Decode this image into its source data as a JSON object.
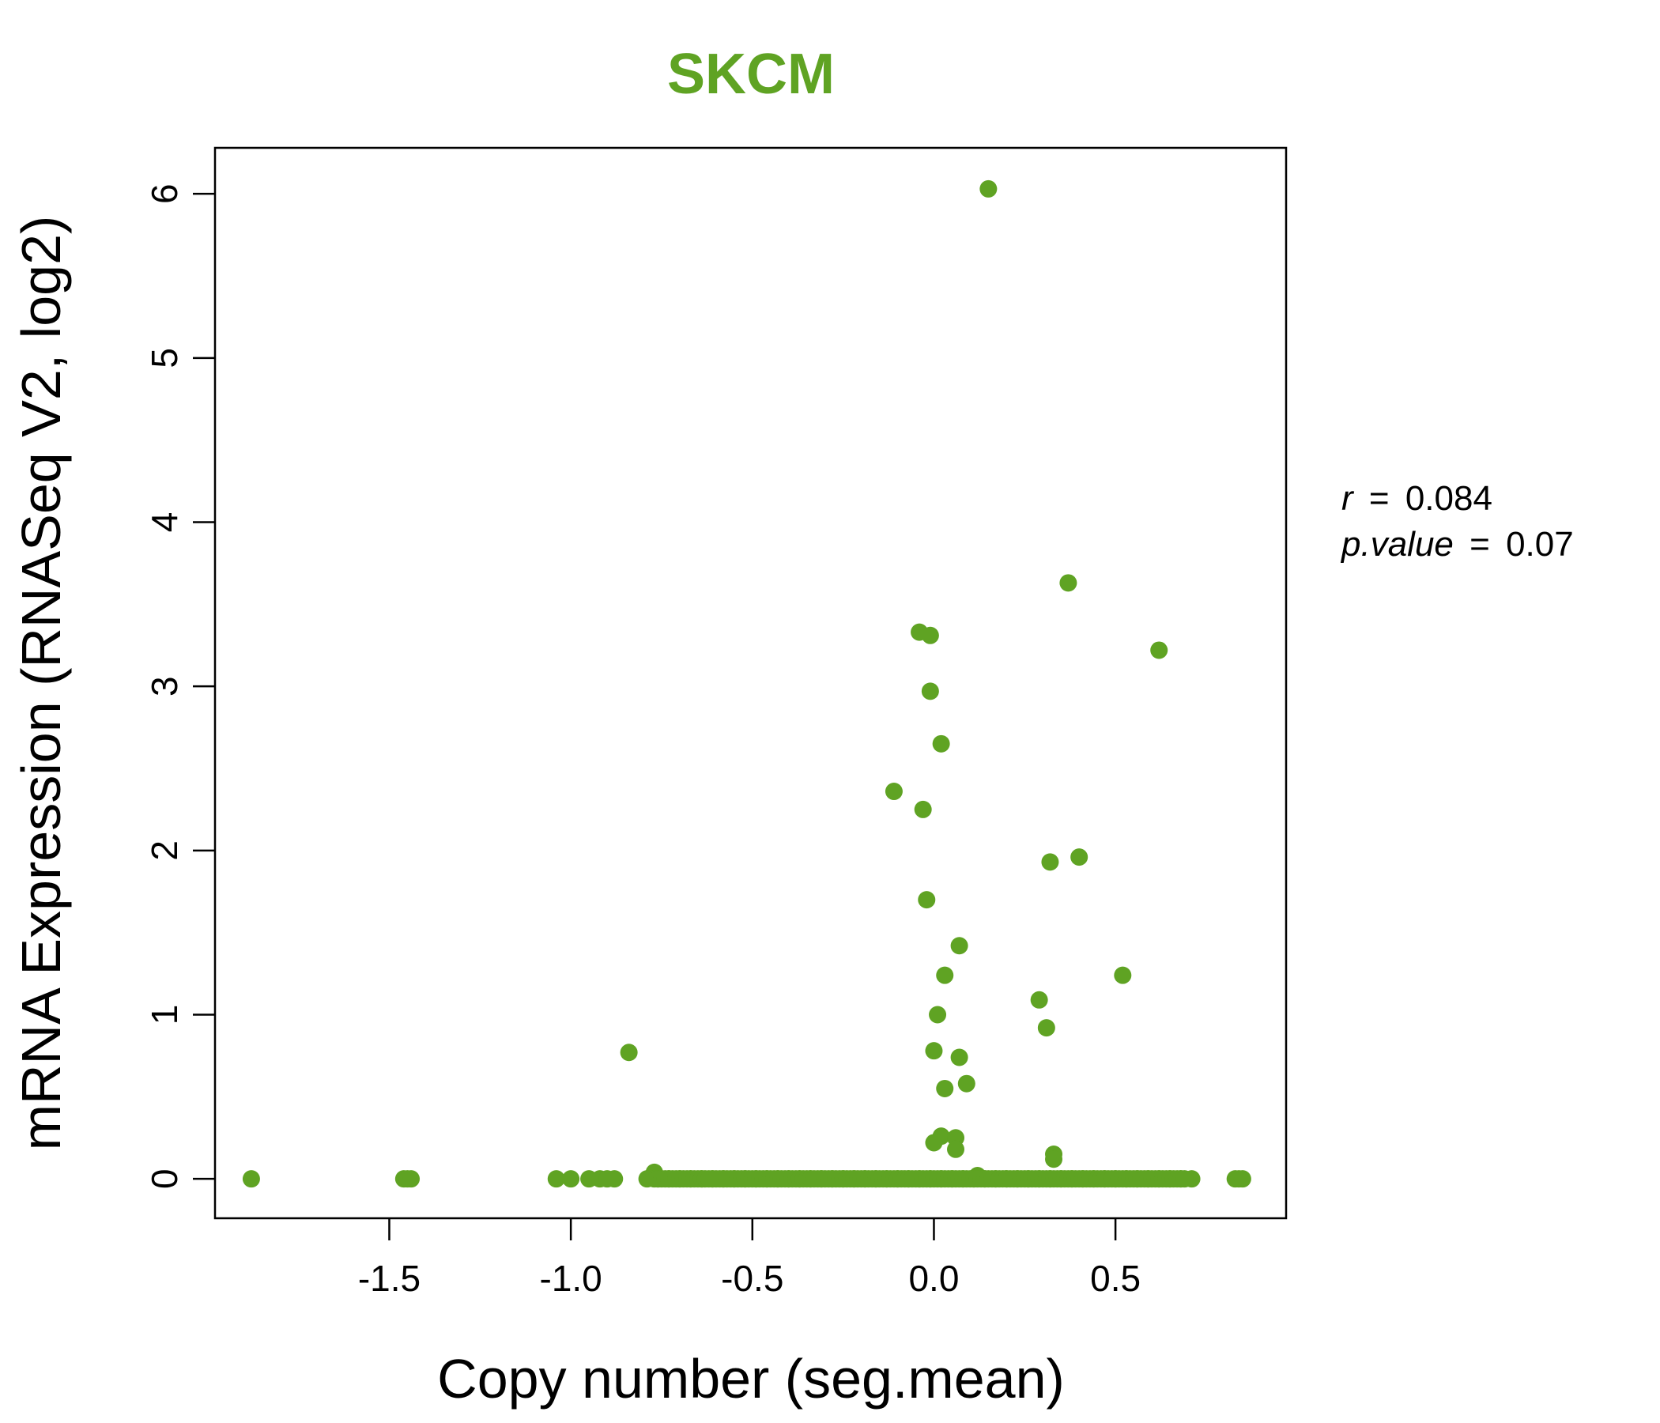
{
  "chart_data": {
    "type": "scatter",
    "title": "SKCM",
    "title_color": "#5fa323",
    "point_color": "#5fa323",
    "xlabel": "Copy number (seg.mean)",
    "ylabel": "mRNA Expression (RNASeq V2, log2)",
    "xlim": [
      -1.98,
      0.97
    ],
    "ylim": [
      -0.24,
      6.28
    ],
    "xticks": [
      -1.5,
      -1.0,
      -0.5,
      0.0,
      0.5
    ],
    "xtick_labels": [
      "-1.5",
      "-1.0",
      "-0.5",
      "0.0",
      "0.5"
    ],
    "yticks": [
      0,
      1,
      2,
      3,
      4,
      5,
      6
    ],
    "ytick_labels": [
      "0",
      "1",
      "2",
      "3",
      "4",
      "5",
      "6"
    ],
    "stats": {
      "r_label": "r",
      "r_value": "0.084",
      "p_label": "p.value",
      "p_value": "0.07"
    },
    "points": [
      {
        "x": 0.15,
        "y": 6.03
      },
      {
        "x": 0.37,
        "y": 3.63
      },
      {
        "x": -0.04,
        "y": 3.33
      },
      {
        "x": -0.01,
        "y": 3.31
      },
      {
        "x": 0.62,
        "y": 3.22
      },
      {
        "x": -0.01,
        "y": 2.97
      },
      {
        "x": 0.02,
        "y": 2.65
      },
      {
        "x": -0.11,
        "y": 2.36
      },
      {
        "x": -0.03,
        "y": 2.25
      },
      {
        "x": 0.4,
        "y": 1.96
      },
      {
        "x": 0.32,
        "y": 1.93
      },
      {
        "x": -0.02,
        "y": 1.7
      },
      {
        "x": 0.07,
        "y": 1.42
      },
      {
        "x": 0.03,
        "y": 1.24
      },
      {
        "x": 0.52,
        "y": 1.24
      },
      {
        "x": 0.29,
        "y": 1.09
      },
      {
        "x": 0.01,
        "y": 1.0
      },
      {
        "x": 0.31,
        "y": 0.92
      },
      {
        "x": -0.84,
        "y": 0.77
      },
      {
        "x": 0.0,
        "y": 0.78
      },
      {
        "x": 0.07,
        "y": 0.74
      },
      {
        "x": 0.09,
        "y": 0.58
      },
      {
        "x": 0.03,
        "y": 0.55
      },
      {
        "x": 0.02,
        "y": 0.26
      },
      {
        "x": 0.06,
        "y": 0.25
      },
      {
        "x": 0.0,
        "y": 0.22
      },
      {
        "x": 0.06,
        "y": 0.18
      },
      {
        "x": 0.33,
        "y": 0.15
      },
      {
        "x": 0.33,
        "y": 0.12
      },
      {
        "x": -0.77,
        "y": 0.04
      },
      {
        "x": 0.12,
        "y": 0.02
      },
      {
        "x": -1.88,
        "y": 0.0
      },
      {
        "x": -1.46,
        "y": 0.0
      },
      {
        "x": -1.45,
        "y": 0.0
      },
      {
        "x": -1.44,
        "y": 0.0
      },
      {
        "x": -1.04,
        "y": 0.0
      },
      {
        "x": -1.0,
        "y": 0.0
      },
      {
        "x": -0.95,
        "y": 0.0
      },
      {
        "x": -0.92,
        "y": 0.0
      },
      {
        "x": -0.9,
        "y": 0.0
      },
      {
        "x": -0.88,
        "y": 0.0
      },
      {
        "x": -0.79,
        "y": 0.0
      },
      {
        "x": -0.76,
        "y": 0.0
      },
      {
        "x": -0.73,
        "y": 0.0
      },
      {
        "x": -0.7,
        "y": 0.0
      },
      {
        "x": -0.67,
        "y": 0.0
      },
      {
        "x": -0.64,
        "y": 0.0
      },
      {
        "x": -0.61,
        "y": 0.0
      },
      {
        "x": -0.58,
        "y": 0.0
      },
      {
        "x": -0.55,
        "y": 0.0
      },
      {
        "x": -0.52,
        "y": 0.0
      },
      {
        "x": -0.49,
        "y": 0.0
      },
      {
        "x": -0.46,
        "y": 0.0
      },
      {
        "x": -0.43,
        "y": 0.0
      },
      {
        "x": -0.4,
        "y": 0.0
      },
      {
        "x": -0.37,
        "y": 0.0
      },
      {
        "x": -0.34,
        "y": 0.0
      },
      {
        "x": -0.31,
        "y": 0.0
      },
      {
        "x": -0.28,
        "y": 0.0
      },
      {
        "x": -0.25,
        "y": 0.0
      },
      {
        "x": -0.22,
        "y": 0.0
      },
      {
        "x": -0.19,
        "y": 0.0
      },
      {
        "x": -0.16,
        "y": 0.0
      },
      {
        "x": -0.13,
        "y": 0.0
      },
      {
        "x": -0.1,
        "y": 0.0
      },
      {
        "x": -0.07,
        "y": 0.0
      },
      {
        "x": -0.04,
        "y": 0.0
      },
      {
        "x": -0.01,
        "y": 0.0
      },
      {
        "x": 0.02,
        "y": 0.0
      },
      {
        "x": 0.05,
        "y": 0.0
      },
      {
        "x": 0.08,
        "y": 0.0
      },
      {
        "x": 0.11,
        "y": 0.0
      },
      {
        "x": 0.14,
        "y": 0.0
      },
      {
        "x": 0.17,
        "y": 0.0
      },
      {
        "x": 0.2,
        "y": 0.0
      },
      {
        "x": 0.23,
        "y": 0.0
      },
      {
        "x": 0.26,
        "y": 0.0
      },
      {
        "x": 0.29,
        "y": 0.0
      },
      {
        "x": 0.32,
        "y": 0.0
      },
      {
        "x": 0.35,
        "y": 0.0
      },
      {
        "x": 0.38,
        "y": 0.0
      },
      {
        "x": 0.41,
        "y": 0.0
      },
      {
        "x": 0.44,
        "y": 0.0
      },
      {
        "x": 0.47,
        "y": 0.0
      },
      {
        "x": 0.5,
        "y": 0.0
      },
      {
        "x": 0.53,
        "y": 0.0
      },
      {
        "x": 0.56,
        "y": 0.0
      },
      {
        "x": 0.59,
        "y": 0.0
      },
      {
        "x": 0.62,
        "y": 0.0
      },
      {
        "x": 0.65,
        "y": 0.0
      },
      {
        "x": 0.68,
        "y": 0.0
      },
      {
        "x": 0.71,
        "y": 0.0
      },
      {
        "x": 0.83,
        "y": 0.0
      },
      {
        "x": 0.84,
        "y": 0.0
      },
      {
        "x": 0.85,
        "y": 0.0
      }
    ]
  }
}
